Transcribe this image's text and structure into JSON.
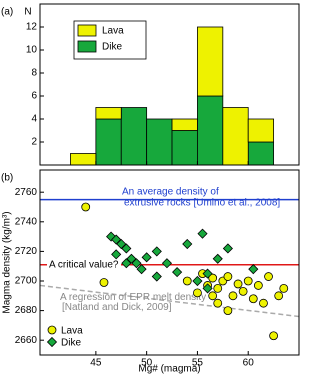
{
  "chart_data": [
    {
      "type": "histogram",
      "panel_label": "(a)",
      "ylabel": "N",
      "bins": [
        42.5,
        45,
        47.5,
        50,
        52.5,
        55,
        57.5,
        60,
        62.5
      ],
      "series": [
        {
          "name": "Dike",
          "color": "#17a83c",
          "values": [
            0,
            4,
            5,
            4,
            3,
            6,
            0,
            2
          ]
        },
        {
          "name": "Lava",
          "color": "#eef200",
          "values": [
            1,
            1,
            0,
            0,
            1,
            6,
            5,
            2
          ]
        }
      ],
      "xlim": [
        39.5,
        65
      ],
      "xticks": [
        45,
        50,
        55,
        60
      ],
      "ylim": [
        0,
        14
      ],
      "yticks": [
        2,
        4,
        6,
        8,
        10,
        12
      ],
      "legend": "upper-left"
    },
    {
      "type": "scatter",
      "panel_label": "(b)",
      "xlabel": "Mg# (magma)",
      "ylabel": "Magma density (kg/m³)",
      "series": [
        {
          "name": "Lava",
          "color": "#eef200",
          "marker": "circle",
          "x": [
            44,
            45.8,
            54,
            55,
            55.5,
            56,
            56.5,
            57,
            57.5,
            58,
            58.5,
            59,
            59.5,
            60,
            60.5,
            61,
            62,
            61.5,
            62.5,
            63.5,
            63,
            57,
            58,
            56.5
          ],
          "y": [
            2750,
            2699,
            2700,
            2692,
            2705,
            2697,
            2702,
            2695,
            2700,
            2703,
            2690,
            2698,
            2693,
            2700,
            2688,
            2697,
            2703,
            2685,
            2663,
            2695,
            2690,
            2685,
            2680,
            2690
          ]
        },
        {
          "name": "Dike",
          "color": "#17a83c",
          "marker": "diamond",
          "x": [
            46.5,
            47,
            47.5,
            48,
            47,
            48.5,
            49,
            50,
            51,
            49.5,
            52,
            51,
            53,
            55,
            56,
            54,
            55.5,
            57,
            56,
            58,
            60.5,
            48
          ],
          "y": [
            2730,
            2728,
            2725,
            2722,
            2718,
            2715,
            2712,
            2716,
            2720,
            2708,
            2712,
            2703,
            2706,
            2700,
            2695,
            2725,
            2732,
            2715,
            2705,
            2722,
            2708,
            2712
          ]
        }
      ],
      "hlines": [
        {
          "value": 2755,
          "color": "#1f3fcf",
          "label": "An average density of extrusive rocks [Umino et al., 2008]"
        },
        {
          "value": 2711,
          "color": "#e01818",
          "label": "A critical value?"
        }
      ],
      "regression": {
        "x": [
          39.5,
          65
        ],
        "y": [
          2697,
          2676
        ],
        "color": "#aaaaaa",
        "label": "A regression of EPR melt density [Natland and Dick, 2009]"
      },
      "xlim": [
        39.5,
        65
      ],
      "xticks": [
        45,
        50,
        55,
        60
      ],
      "ylim": [
        2650,
        2775
      ],
      "yticks": [
        2660,
        2680,
        2700,
        2720,
        2740,
        2760
      ],
      "legend": "lower-left"
    }
  ]
}
